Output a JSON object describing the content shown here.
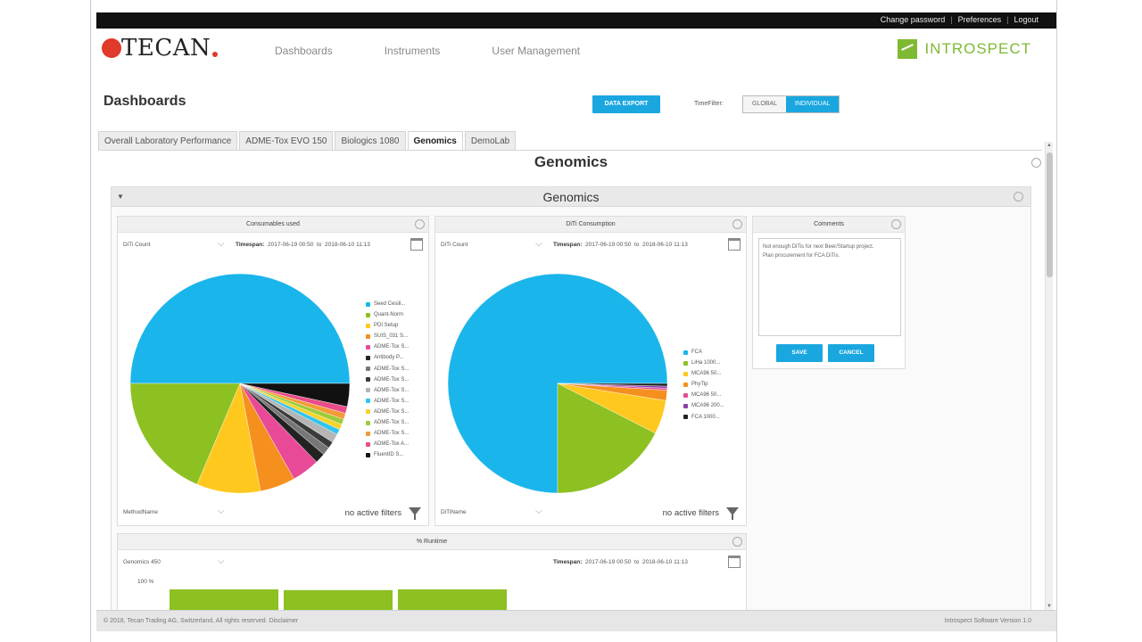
{
  "header": {
    "links": [
      "Change password",
      "Preferences",
      "Logout"
    ],
    "logo_text": "TECAN",
    "nav": [
      "Dashboards",
      "Instruments",
      "User Management"
    ],
    "brand": "INTROSPECT"
  },
  "toolbar": {
    "page_title": "Dashboards",
    "export_label": "DATA EXPORT",
    "timefilter_label": "TimeFilter:",
    "toggle_options": [
      "GLOBAL",
      "INDIVIDUAL"
    ],
    "toggle_active": "INDIVIDUAL"
  },
  "tabs": [
    "Overall Laboratory Performance",
    "ADME-Tox EVO 150",
    "Biologics 1080",
    "Genomics",
    "DemoLab"
  ],
  "active_tab": "Genomics",
  "section": {
    "title": "Genomics",
    "group_title": "Genomics"
  },
  "panels": {
    "consumables": {
      "title": "Consumables used",
      "select": "DiTi Count",
      "timespan_label": "Timespan:",
      "from": "2017-06-19 00:50",
      "to_label": "to",
      "to": "2018-06-10 11:13",
      "footer_select": "MethodName",
      "filters": "no active filters"
    },
    "diti": {
      "title": "DiTi Consumption",
      "select": "DiTi Count",
      "timespan_label": "Timespan:",
      "from": "2017-06-19 00:50",
      "to_label": "to",
      "to": "2018-06-10 11:13",
      "footer_select": "DiTiName",
      "filters": "no active filters"
    },
    "comments": {
      "title": "Comments",
      "text_line1": "Not enough DiTis for next Beer/Startup project.",
      "text_line2": "Plan procurement for FCA DiTis.",
      "save_label": "SAVE",
      "cancel_label": "CANCEL"
    },
    "runtime": {
      "title": "% Runtime",
      "select": "Genomics 450",
      "timespan_label": "Timespan:",
      "from": "2017-06-19 00:50",
      "to_label": "to",
      "to": "2018-06-10 11:13",
      "y_label": "100 %"
    }
  },
  "chart_data": [
    {
      "type": "pie",
      "title": "Consumables used",
      "labels": [
        "Seed Cesiil...",
        "Quant-Norm",
        "PDI Setup",
        "SUIS_031 S...",
        "ADME-Tox S...",
        "Antibody P...",
        "ADME-Tox S...",
        "ADME-Tox S...",
        "ADME-Tox S...",
        "ADME-Tox S...",
        "ADME-Tox S...",
        "ADME-Tox S...",
        "ADME-Tox S...",
        "ADME-Tox A...",
        "FluentID S..."
      ],
      "values": [
        50,
        18.6,
        9.4,
        5.2,
        4.1,
        1.5,
        1.2,
        1.0,
        1.3,
        0.8,
        0.8,
        0.8,
        0.9,
        1.0,
        3.4
      ],
      "colors": [
        "#1ab5ea",
        "#8dc021",
        "#ffc81e",
        "#f5901f",
        "#e94a97",
        "#222222",
        "#777777",
        "#3a3a3a",
        "#b5b5b5",
        "#34c4ed",
        "#f7d22a",
        "#9ccc39",
        "#f39b36",
        "#ea4c8a",
        "#111111"
      ]
    },
    {
      "type": "pie",
      "title": "DiTi Consumption",
      "labels": [
        "FCA",
        "LiHa 1000...",
        "MCA96 50...",
        "PhyTip",
        "MCA96 50...",
        "MCA96 200...",
        "FCA 1000..."
      ],
      "values": [
        75,
        17.5,
        5,
        1.5,
        0.3,
        0.3,
        0.4
      ],
      "colors": [
        "#1ab5ea",
        "#8dc021",
        "#ffc81e",
        "#f5901f",
        "#e94a97",
        "#8b3fa8",
        "#222222"
      ]
    },
    {
      "type": "bar",
      "title": "% Runtime",
      "ylabel": "100 %",
      "categories": [
        "",
        "",
        ""
      ],
      "values": [
        100,
        98,
        100
      ],
      "colors": [
        "#8dc021"
      ]
    }
  ],
  "footer": {
    "copyright": "© 2018, Tecan Trading AG, Switzerland, All rights reserved.  Disclaimer",
    "version": "Introspect Software Version 1.0"
  }
}
